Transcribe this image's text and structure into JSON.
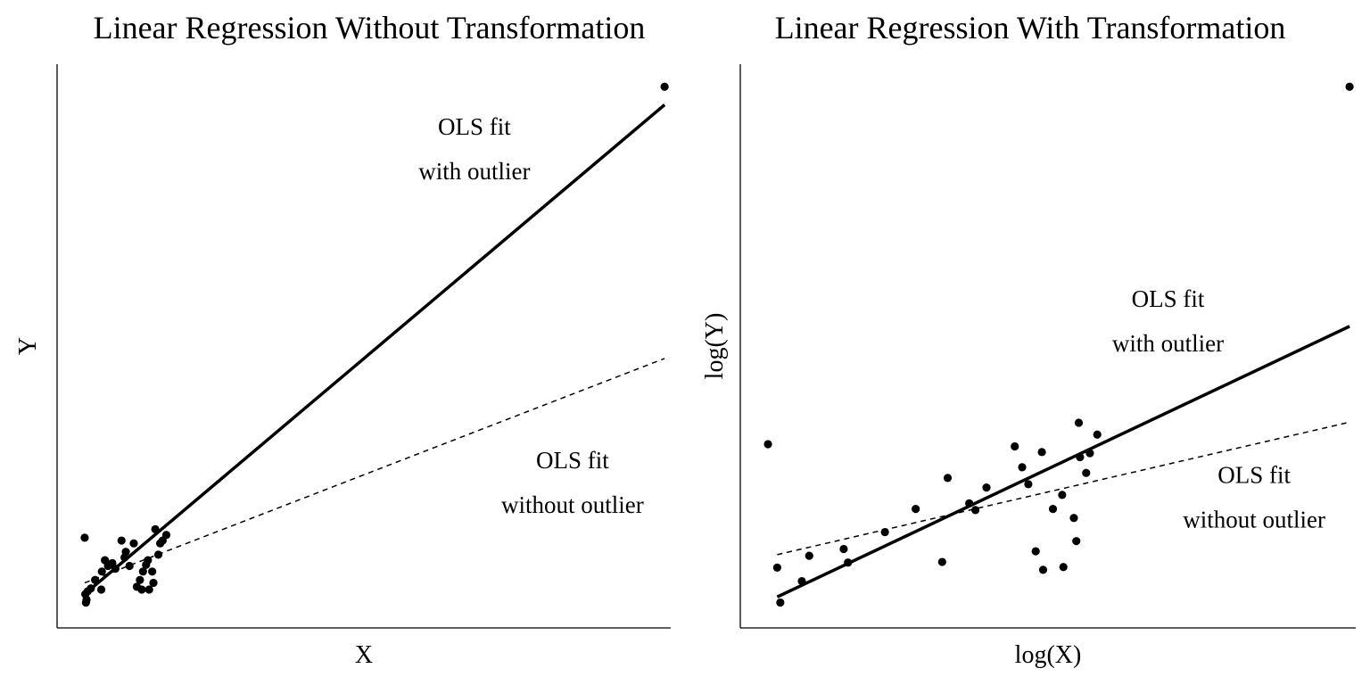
{
  "chart_data": [
    {
      "type": "scatter",
      "title": "Linear Regression Without Transformation",
      "xlabel": "X",
      "ylabel": "Y",
      "xlim": [
        0,
        1
      ],
      "ylim": [
        0,
        1
      ],
      "ticks": false,
      "grid": false,
      "points": [
        [
          0.047,
          0.045
        ],
        [
          0.046,
          0.06
        ],
        [
          0.05,
          0.065
        ],
        [
          0.055,
          0.07
        ],
        [
          0.062,
          0.085
        ],
        [
          0.072,
          0.068
        ],
        [
          0.073,
          0.1
        ],
        [
          0.078,
          0.12
        ],
        [
          0.083,
          0.11
        ],
        [
          0.09,
          0.115
        ],
        [
          0.095,
          0.105
        ],
        [
          0.105,
          0.155
        ],
        [
          0.11,
          0.125
        ],
        [
          0.112,
          0.135
        ],
        [
          0.118,
          0.11
        ],
        [
          0.125,
          0.15
        ],
        [
          0.13,
          0.073
        ],
        [
          0.135,
          0.085
        ],
        [
          0.138,
          0.068
        ],
        [
          0.14,
          0.1
        ],
        [
          0.145,
          0.112
        ],
        [
          0.148,
          0.12
        ],
        [
          0.15,
          0.068
        ],
        [
          0.155,
          0.1
        ],
        [
          0.157,
          0.08
        ],
        [
          0.16,
          0.175
        ],
        [
          0.165,
          0.13
        ],
        [
          0.168,
          0.15
        ],
        [
          0.172,
          0.155
        ],
        [
          0.178,
          0.165
        ],
        [
          0.045,
          0.16
        ],
        [
          0.048,
          0.05
        ],
        [
          0.99,
          0.96
        ]
      ],
      "series": [
        {
          "style": "solid",
          "line": [
            [
              0.045,
              0.06
            ],
            [
              0.99,
              0.928
            ]
          ]
        },
        {
          "style": "dashed",
          "line": [
            [
              0.045,
              0.08
            ],
            [
              0.99,
              0.478
            ]
          ]
        }
      ],
      "annotations": [
        {
          "lines": [
            "OLS fit",
            "with outlier"
          ],
          "x": 0.68,
          "y": 0.875
        },
        {
          "lines": [
            "OLS fit",
            "without outlier"
          ],
          "x": 0.84,
          "y": 0.283
        }
      ]
    },
    {
      "type": "scatter",
      "title": "Linear Regression With Transformation",
      "xlabel": "log(X)",
      "ylabel": "log(Y)",
      "xlim": [
        0,
        1
      ],
      "ylim": [
        0,
        1
      ],
      "ticks": false,
      "grid": false,
      "points": [
        [
          0.045,
          0.326
        ],
        [
          0.06,
          0.107
        ],
        [
          0.065,
          0.045
        ],
        [
          0.1,
          0.083
        ],
        [
          0.112,
          0.128
        ],
        [
          0.168,
          0.14
        ],
        [
          0.175,
          0.116
        ],
        [
          0.235,
          0.17
        ],
        [
          0.285,
          0.211
        ],
        [
          0.328,
          0.117
        ],
        [
          0.337,
          0.266
        ],
        [
          0.372,
          0.221
        ],
        [
          0.382,
          0.209
        ],
        [
          0.4,
          0.249
        ],
        [
          0.446,
          0.322
        ],
        [
          0.458,
          0.285
        ],
        [
          0.468,
          0.255
        ],
        [
          0.48,
          0.136
        ],
        [
          0.49,
          0.312
        ],
        [
          0.492,
          0.103
        ],
        [
          0.508,
          0.211
        ],
        [
          0.523,
          0.236
        ],
        [
          0.525,
          0.108
        ],
        [
          0.542,
          0.195
        ],
        [
          0.546,
          0.154
        ],
        [
          0.55,
          0.364
        ],
        [
          0.552,
          0.303
        ],
        [
          0.562,
          0.275
        ],
        [
          0.568,
          0.31
        ],
        [
          0.58,
          0.343
        ],
        [
          0.99,
          0.96
        ]
      ],
      "series": [
        {
          "style": "solid",
          "line": [
            [
              0.06,
              0.055
            ],
            [
              0.99,
              0.535
            ]
          ]
        },
        {
          "style": "dashed",
          "line": [
            [
              0.06,
              0.13
            ],
            [
              0.99,
              0.365
            ]
          ]
        }
      ],
      "annotations": [
        {
          "lines": [
            "OLS fit",
            "with outlier"
          ],
          "x": 0.695,
          "y": 0.57
        },
        {
          "lines": [
            "OLS fit",
            "without outlier"
          ],
          "x": 0.835,
          "y": 0.257
        }
      ]
    }
  ]
}
